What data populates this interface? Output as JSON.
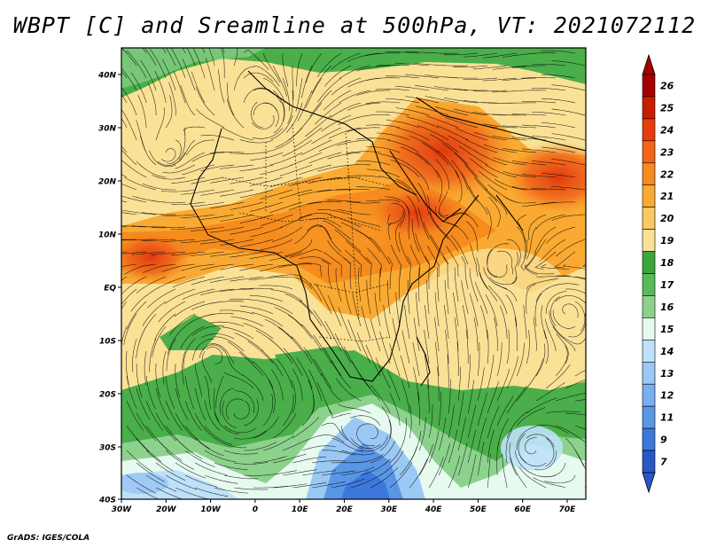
{
  "title": "WBPT [C] and Sreamline at 500hPa, VT: 2021072112",
  "credit": "GrADS: IGES/COLA",
  "map": {
    "lat_labels": [
      "40N",
      "30N",
      "20N",
      "10N",
      "EQ",
      "10S",
      "20S",
      "30S",
      "40S"
    ],
    "lon_labels": [
      "30W",
      "20W",
      "10W",
      "0",
      "10E",
      "20E",
      "30E",
      "40E",
      "50E",
      "60E",
      "70E"
    ]
  },
  "colorbar": {
    "labels": [
      "26",
      "25",
      "24",
      "23",
      "22",
      "21",
      "20",
      "19",
      "18",
      "17",
      "16",
      "15",
      "14",
      "13",
      "12",
      "11",
      "9",
      "7"
    ],
    "colors": [
      "#a50000",
      "#c81e00",
      "#e63c0a",
      "#f56414",
      "#f58c1e",
      "#faaa32",
      "#fac864",
      "#fae196",
      "#3ca53c",
      "#5ab95a",
      "#8cd28c",
      "#e6faf0",
      "#bee1fa",
      "#9bc8f5",
      "#78aff0",
      "#5a96e6",
      "#3c78dc",
      "#2858c8"
    ]
  }
}
